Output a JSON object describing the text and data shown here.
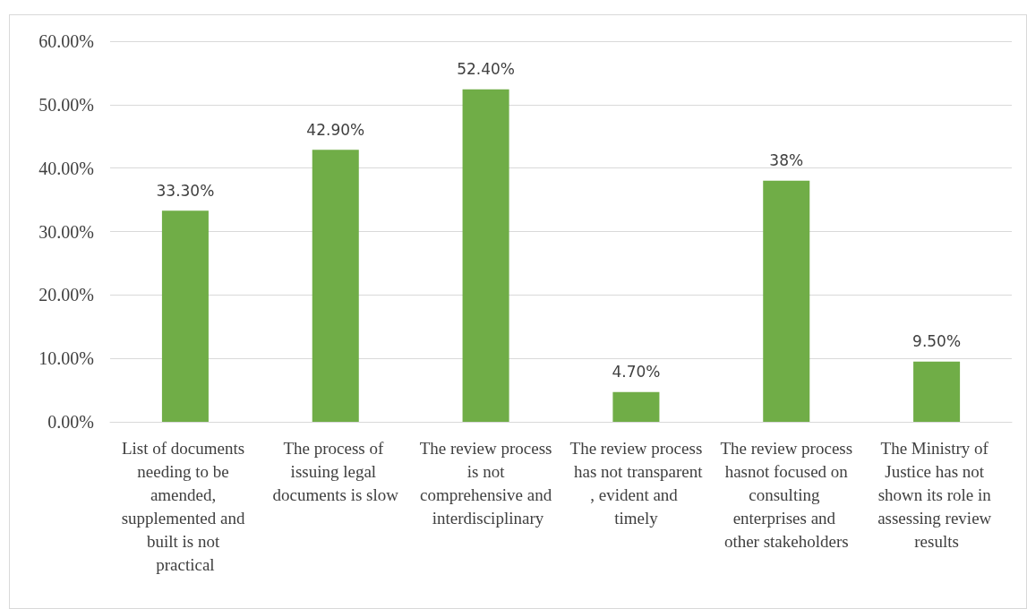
{
  "chart_data": {
    "type": "bar",
    "categories": [
      "List of documents needing to be amended, supplemented and built is not practical",
      "The process of issuing legal documents is slow",
      "The review process is not comprehensive and interdisciplinary",
      "The review process has not transparent, evident and timely",
      "The review process hasnot focused on consulting enterprises and other stakeholders",
      "The Ministry of Justice has not shown its role in assessing review results"
    ],
    "values": [
      33.3,
      42.9,
      52.4,
      4.7,
      38,
      9.5
    ],
    "value_labels": [
      "33.30%",
      "42.90%",
      "52.40%",
      "4.70%",
      "38%",
      "9.50%"
    ],
    "color": "#70ad47",
    "ylim": [
      0,
      60
    ],
    "yticks": [
      {
        "value": 0,
        "label": "0.00%"
      },
      {
        "value": 10,
        "label": "10.00%"
      },
      {
        "value": 20,
        "label": "20.00%"
      },
      {
        "value": 30,
        "label": "30.00%"
      },
      {
        "value": 40,
        "label": "40.00%"
      },
      {
        "value": 50,
        "label": "50.00%"
      },
      {
        "value": 60,
        "label": "60.00%"
      }
    ],
    "grid": "y"
  }
}
